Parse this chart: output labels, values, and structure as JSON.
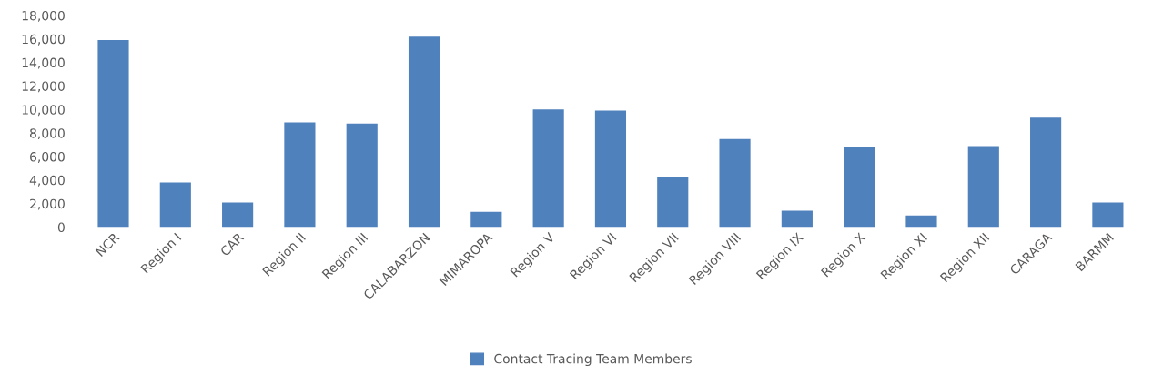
{
  "chart_data": {
    "type": "bar",
    "categories": [
      "NCR",
      "Region I",
      "CAR",
      "Region II",
      "Region III",
      "CALABARZON",
      "MIMAROPA",
      "Region V",
      "Region VI",
      "Region VII",
      "Region VIII",
      "Region IX",
      "Region X",
      "Region XI",
      "Region XII",
      "CARAGA",
      "BARMM"
    ],
    "series": [
      {
        "name": "Contact Tracing Team Members",
        "color": "#4f81bd",
        "values": [
          15900,
          3800,
          2100,
          8900,
          8800,
          16200,
          1300,
          10000,
          9900,
          4300,
          7500,
          1400,
          6800,
          1000,
          6900,
          9300,
          2100
        ]
      }
    ],
    "ylim": [
      0,
      18000
    ],
    "yticks": [
      {
        "value": 0,
        "label": "0"
      },
      {
        "value": 2000,
        "label": "2,000"
      },
      {
        "value": 4000,
        "label": "4,000"
      },
      {
        "value": 6000,
        "label": "6,000"
      },
      {
        "value": 8000,
        "label": "8,000"
      },
      {
        "value": 10000,
        "label": "10,000"
      },
      {
        "value": 12000,
        "label": "12,000"
      },
      {
        "value": 14000,
        "label": "14,000"
      },
      {
        "value": 16000,
        "label": "16,000"
      },
      {
        "value": 18000,
        "label": "18,000"
      }
    ],
    "grid": false,
    "legend": "bottom"
  }
}
